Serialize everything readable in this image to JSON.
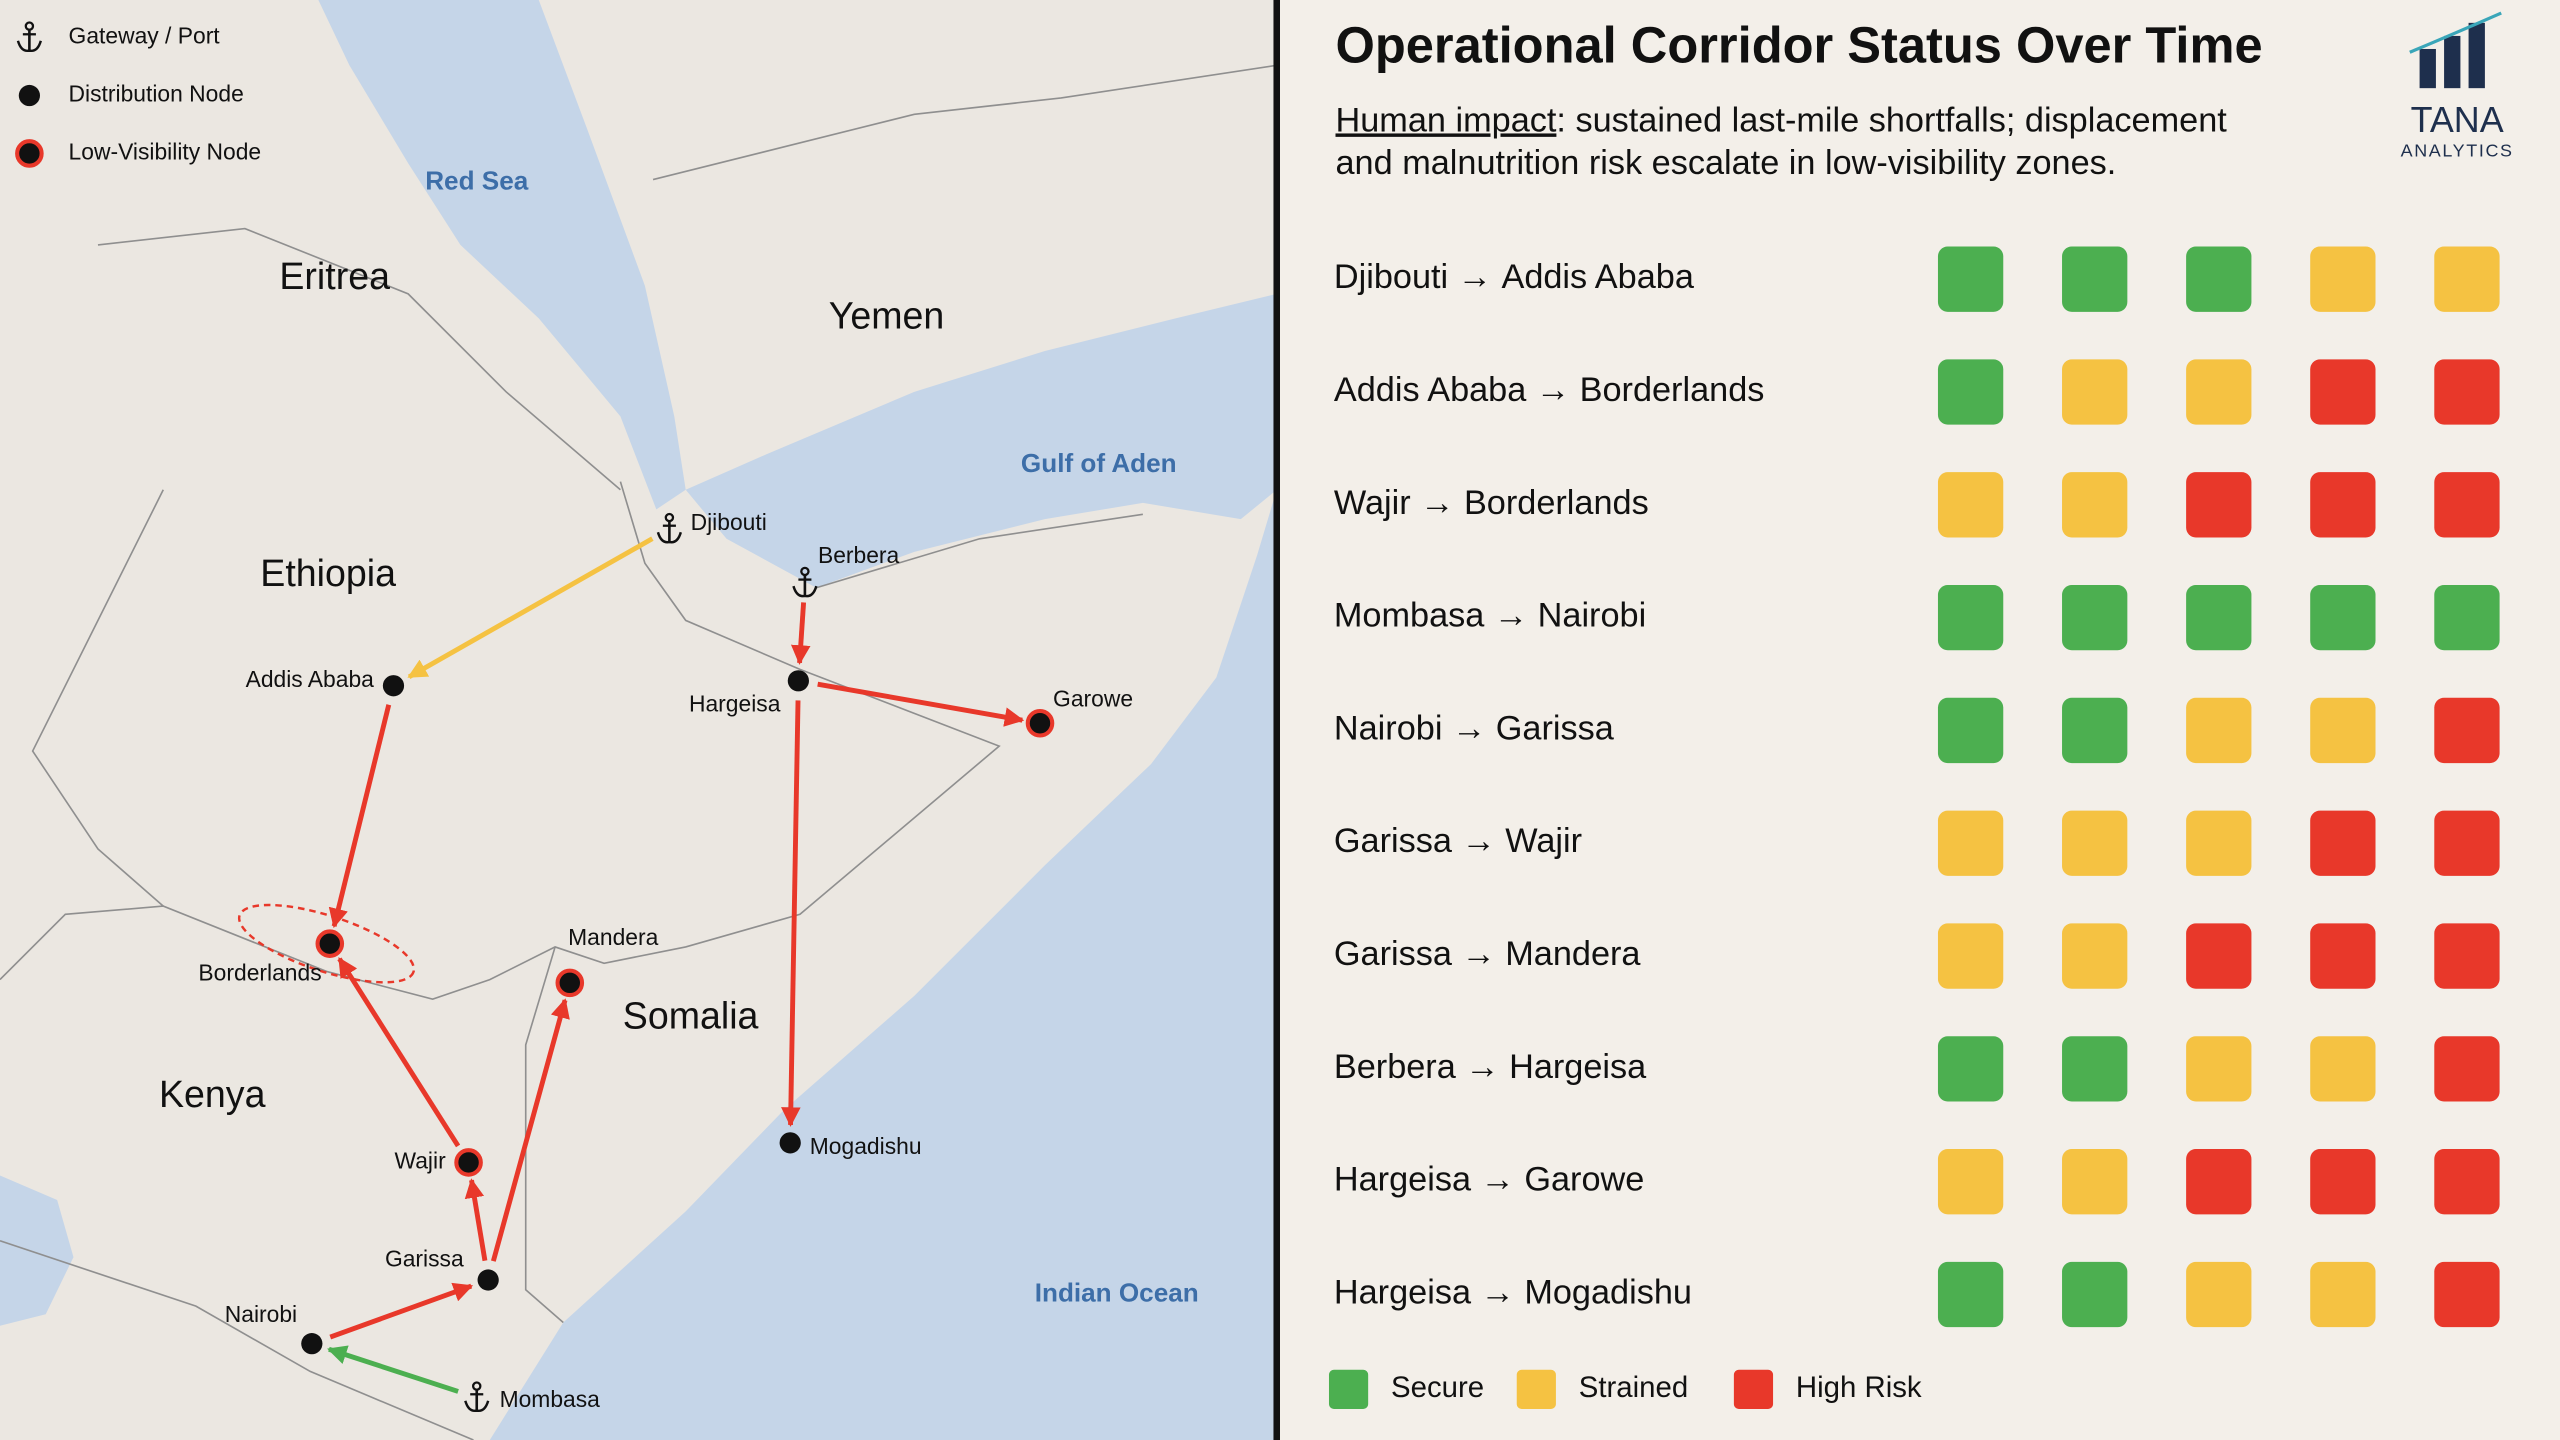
{
  "map": {
    "legend": [
      "Gateway / Port",
      "Distribution Node",
      "Low-Visibility Node"
    ],
    "seas": [
      "Red Sea",
      "Gulf of Aden",
      "Indian Ocean"
    ],
    "countries": [
      "Eritrea",
      "Yemen",
      "Ethiopia",
      "Somalia",
      "Kenya"
    ],
    "nodes": [
      {
        "name": "Djibouti",
        "type": "Gateway / Port"
      },
      {
        "name": "Berbera",
        "type": "Gateway / Port"
      },
      {
        "name": "Addis Ababa",
        "type": "Distribution Node"
      },
      {
        "name": "Hargeisa",
        "type": "Distribution Node"
      },
      {
        "name": "Garowe",
        "type": "Low-Visibility Node"
      },
      {
        "name": "Borderlands",
        "type": "Low-Visibility Node"
      },
      {
        "name": "Mandera",
        "type": "Low-Visibility Node"
      },
      {
        "name": "Wajir",
        "type": "Low-Visibility Node"
      },
      {
        "name": "Garissa",
        "type": "Distribution Node"
      },
      {
        "name": "Nairobi",
        "type": "Distribution Node"
      },
      {
        "name": "Mombasa",
        "type": "Gateway / Port"
      },
      {
        "name": "Mogadishu",
        "type": "Distribution Node"
      }
    ]
  },
  "panel": {
    "title": "Operational Corridor Status Over Time",
    "subtitle": {
      "lead": "Human impact",
      "text": ": sustained last-mile shortfalls; displacement",
      "text2": "and malnutrition risk escalate in low-visibility zones."
    },
    "logo": {
      "name": "TANA",
      "tagline": "ANALYTICS"
    },
    "statuses": [
      {
        "label": "Secure",
        "color": "#4caf50"
      },
      {
        "label": "Strained",
        "color": "#f5c242"
      },
      {
        "label": "High Risk",
        "color": "#e8382a"
      }
    ],
    "corridors": [
      {
        "from": "Djibouti",
        "to": "Addis Ababa",
        "statuses": [
          "Secure",
          "Secure",
          "Secure",
          "Strained",
          "Strained"
        ]
      },
      {
        "from": "Addis Ababa",
        "to": "Borderlands",
        "statuses": [
          "Secure",
          "Strained",
          "Strained",
          "High Risk",
          "High Risk"
        ]
      },
      {
        "from": "Wajir",
        "to": "Borderlands",
        "statuses": [
          "Strained",
          "Strained",
          "High Risk",
          "High Risk",
          "High Risk"
        ]
      },
      {
        "from": "Mombasa",
        "to": "Nairobi",
        "statuses": [
          "Secure",
          "Secure",
          "Secure",
          "Secure",
          "Secure"
        ]
      },
      {
        "from": "Nairobi",
        "to": "Garissa",
        "statuses": [
          "Secure",
          "Secure",
          "Strained",
          "Strained",
          "High Risk"
        ]
      },
      {
        "from": "Garissa",
        "to": "Wajir",
        "statuses": [
          "Strained",
          "Strained",
          "Strained",
          "High Risk",
          "High Risk"
        ]
      },
      {
        "from": "Garissa",
        "to": "Mandera",
        "statuses": [
          "Strained",
          "Strained",
          "High Risk",
          "High Risk",
          "High Risk"
        ]
      },
      {
        "from": "Berbera",
        "to": "Hargeisa",
        "statuses": [
          "Secure",
          "Secure",
          "Strained",
          "Strained",
          "High Risk"
        ]
      },
      {
        "from": "Hargeisa",
        "to": "Garowe",
        "statuses": [
          "Strained",
          "Strained",
          "High Risk",
          "High Risk",
          "High Risk"
        ]
      },
      {
        "from": "Hargeisa",
        "to": "Mogadishu",
        "statuses": [
          "Secure",
          "Secure",
          "Strained",
          "Strained",
          "High Risk"
        ]
      }
    ]
  }
}
